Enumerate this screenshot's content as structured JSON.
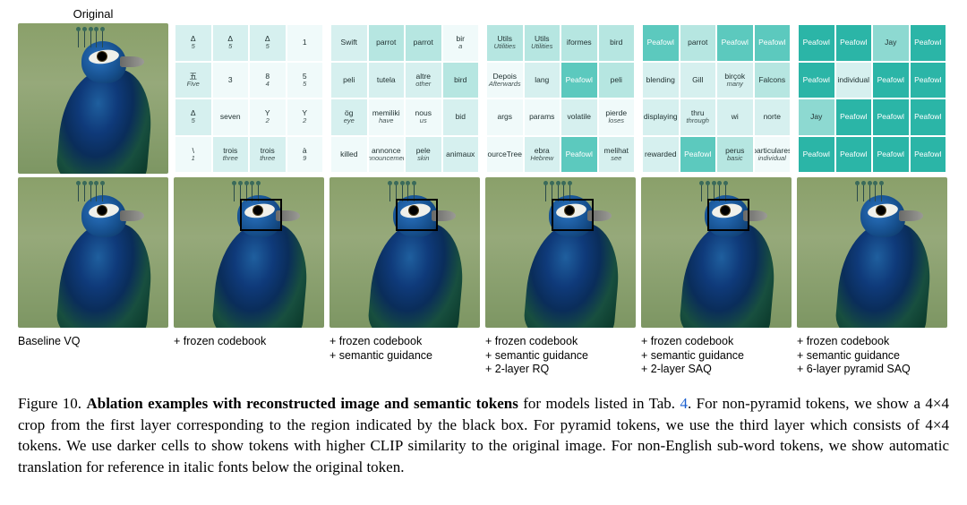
{
  "labels": {
    "original": "Original"
  },
  "shade_scale": [
    "#f0fafa",
    "#d6f0ef",
    "#b6e6e1",
    "#8dd9d1",
    "#5cc9be",
    "#2bb5a7"
  ],
  "columns": [
    {
      "caption_lines": [
        "Baseline VQ"
      ],
      "has_box_top": false,
      "has_box_bottom": false,
      "grid": null
    },
    {
      "caption_lines": [
        "+ frozen codebook"
      ],
      "has_box_top": false,
      "has_box_bottom": true,
      "grid": [
        [
          {
            "t": "Δ",
            "s": "5",
            "sh": 1
          },
          {
            "t": "Δ",
            "s": "5",
            "sh": 1
          },
          {
            "t": "Δ",
            "s": "5",
            "sh": 1
          },
          {
            "t": "1",
            "sh": 0
          }
        ],
        [
          {
            "t": "五",
            "s": "Five",
            "sh": 1
          },
          {
            "t": "3",
            "sh": 0
          },
          {
            "t": "8",
            "s": "4",
            "sh": 0
          },
          {
            "t": "5",
            "s": "5",
            "sh": 0
          }
        ],
        [
          {
            "t": "Δ",
            "s": "5",
            "sh": 1
          },
          {
            "t": "seven",
            "sh": 0
          },
          {
            "t": "Y",
            "s": "2",
            "sh": 0
          },
          {
            "t": "Y",
            "s": "2",
            "sh": 0
          }
        ],
        [
          {
            "t": "\\",
            "s": "1",
            "sh": 0
          },
          {
            "t": "trois",
            "s": "three",
            "sh": 1
          },
          {
            "t": "trois",
            "s": "three",
            "sh": 1
          },
          {
            "t": "à",
            "s": "9",
            "sh": 0
          }
        ]
      ]
    },
    {
      "caption_lines": [
        "+ frozen codebook",
        "+ semantic guidance"
      ],
      "has_box_top": false,
      "has_box_bottom": true,
      "grid": [
        [
          {
            "t": "Swift",
            "sh": 1
          },
          {
            "t": "parrot",
            "sh": 2
          },
          {
            "t": "parrot",
            "sh": 2
          },
          {
            "t": "bir",
            "s": "a",
            "sh": 0
          }
        ],
        [
          {
            "t": "peli",
            "sh": 1
          },
          {
            "t": "tutela",
            "sh": 1
          },
          {
            "t": "altre",
            "s": "other",
            "sh": 1
          },
          {
            "t": "bird",
            "sh": 2
          }
        ],
        [
          {
            "t": "ög",
            "s": "eye",
            "sh": 1
          },
          {
            "t": "memiliki",
            "s": "have",
            "sh": 0
          },
          {
            "t": "nous",
            "s": "us",
            "sh": 0
          },
          {
            "t": "bid",
            "sh": 1
          }
        ],
        [
          {
            "t": "killed",
            "sh": 0
          },
          {
            "t": "annonce",
            "s": "announcement",
            "sh": 0
          },
          {
            "t": "pele",
            "s": "skin",
            "sh": 1
          },
          {
            "t": "animaux",
            "sh": 1
          }
        ]
      ]
    },
    {
      "caption_lines": [
        "+ frozen codebook",
        "+ semantic guidance",
        "+ 2-layer RQ"
      ],
      "has_box_top": false,
      "has_box_bottom": true,
      "grid": [
        [
          {
            "t": "Utils",
            "s": "Utilities",
            "sh": 2
          },
          {
            "t": "Utils",
            "s": "Utilities",
            "sh": 2
          },
          {
            "t": "iformes",
            "sh": 2
          },
          {
            "t": "bird",
            "sh": 2
          }
        ],
        [
          {
            "t": "Depois",
            "s": "Afterwards",
            "sh": 0
          },
          {
            "t": "lang",
            "sh": 1
          },
          {
            "t": "Peafowl",
            "sh": 4
          },
          {
            "t": "peli",
            "sh": 2
          }
        ],
        [
          {
            "t": "args",
            "sh": 0
          },
          {
            "t": "params",
            "sh": 0
          },
          {
            "t": "volatile",
            "sh": 1
          },
          {
            "t": "pierde",
            "s": "loses",
            "sh": 0
          }
        ],
        [
          {
            "t": "ourceTree",
            "sh": 0
          },
          {
            "t": "ebra",
            "s": "Hebrew",
            "sh": 1
          },
          {
            "t": "Peafowl",
            "sh": 4
          },
          {
            "t": "melihat",
            "s": "see",
            "sh": 1
          }
        ]
      ]
    },
    {
      "caption_lines": [
        "+ frozen codebook",
        "+ semantic guidance",
        "+ 2-layer SAQ"
      ],
      "has_box_top": false,
      "has_box_bottom": true,
      "grid": [
        [
          {
            "t": "Peafowl",
            "sh": 4
          },
          {
            "t": "parrot",
            "sh": 2
          },
          {
            "t": "Peafowl",
            "sh": 4
          },
          {
            "t": "Peafowl",
            "sh": 4
          }
        ],
        [
          {
            "t": "blending",
            "sh": 1
          },
          {
            "t": "Gill",
            "sh": 1
          },
          {
            "t": "birçok",
            "s": "many",
            "sh": 1
          },
          {
            "t": "Falcons",
            "sh": 2
          }
        ],
        [
          {
            "t": "displaying",
            "sh": 1
          },
          {
            "t": "thru",
            "s": "through",
            "sh": 1
          },
          {
            "t": "wi",
            "sh": 1
          },
          {
            "t": "norte",
            "sh": 1
          }
        ],
        [
          {
            "t": "rewarded",
            "sh": 1
          },
          {
            "t": "Peafowl",
            "sh": 4
          },
          {
            "t": "perus",
            "s": "basic",
            "sh": 2
          },
          {
            "t": "particulares",
            "s": "individual",
            "sh": 0
          }
        ]
      ]
    },
    {
      "caption_lines": [
        "+ frozen codebook",
        "+ semantic guidance",
        "+ 6-layer pyramid SAQ"
      ],
      "has_box_top": false,
      "has_box_bottom": false,
      "grid": [
        [
          {
            "t": "Peafowl",
            "sh": 5
          },
          {
            "t": "Peafowl",
            "sh": 5
          },
          {
            "t": "Jay",
            "sh": 3
          },
          {
            "t": "Peafowl",
            "sh": 5
          }
        ],
        [
          {
            "t": "Peafowl",
            "sh": 5
          },
          {
            "t": "individual",
            "sh": 1
          },
          {
            "t": "Peafowl",
            "sh": 5
          },
          {
            "t": "Peafowl",
            "sh": 5
          }
        ],
        [
          {
            "t": "Jay",
            "sh": 3
          },
          {
            "t": "Peafowl",
            "sh": 5
          },
          {
            "t": "Peafowl",
            "sh": 5
          },
          {
            "t": "Peafowl",
            "sh": 5
          }
        ],
        [
          {
            "t": "Peafowl",
            "sh": 5
          },
          {
            "t": "Peafowl",
            "sh": 5
          },
          {
            "t": "Peafowl",
            "sh": 5
          },
          {
            "t": "Peafowl",
            "sh": 5
          }
        ]
      ]
    }
  ],
  "caption": {
    "prefix": "Figure 10. ",
    "bold": "Ablation examples with reconstructed image and semantic tokens",
    "rest1": " for models listed in Tab. ",
    "link": "4",
    "rest2": ". For non-pyramid tokens, we show a 4×4 crop from the first layer corresponding to the region indicated by the black box. For pyramid tokens, we use the third layer which consists of 4×4 tokens. We use darker cells to show tokens with higher CLIP similarity to the original image. For non-English sub-word tokens, we show automatic translation for reference in italic fonts below the original token."
  }
}
